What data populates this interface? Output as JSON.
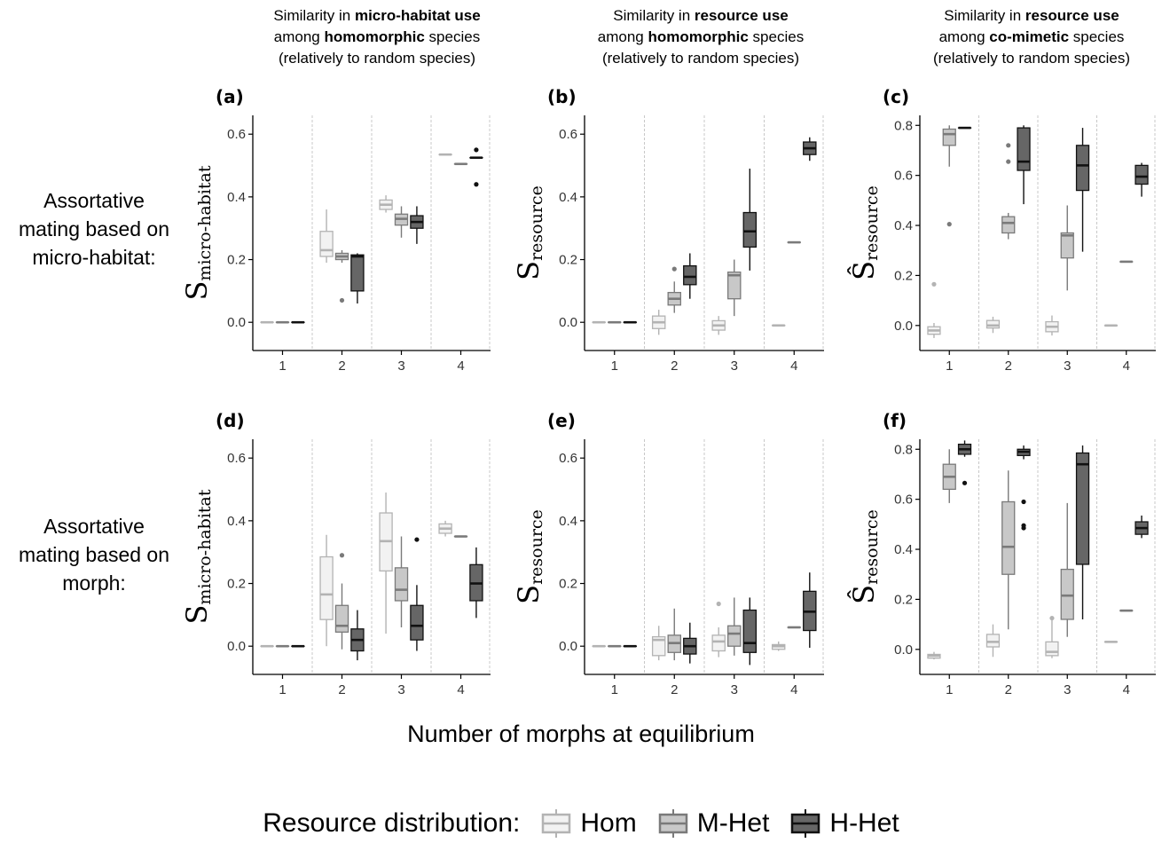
{
  "column_titles": [
    {
      "pre": "Similarity in ",
      "bold1": "micro-habitat use",
      "mid": "among ",
      "bold2": "homomorphic",
      "post": " species",
      "line3": "(relatively to random species)"
    },
    {
      "pre": "Similarity in ",
      "bold1": "resource use",
      "mid": "among ",
      "bold2": "homomorphic",
      "post": " species",
      "line3": "(relatively to random species)"
    },
    {
      "pre": "Similarity in ",
      "bold1": "resource use",
      "mid": "among ",
      "bold2": "co-mimetic",
      "post": " species",
      "line3": "(relatively to random species)"
    }
  ],
  "row_labels": [
    [
      "Assortative",
      "mating based on",
      "micro-habitat:"
    ],
    [
      "Assortative",
      "mating based on",
      "morph:"
    ]
  ],
  "xlabel": "Number of morphs at equilibrium",
  "legend": {
    "title": "Resource distribution:",
    "items": [
      {
        "label": "Hom",
        "fill": "#f2f2f2",
        "stroke": "#b3b3b3"
      },
      {
        "label": "M-Het",
        "fill": "#c8c8c8",
        "stroke": "#7a7a7a"
      },
      {
        "label": "H-Het",
        "fill": "#666666",
        "stroke": "#111111"
      }
    ]
  },
  "chart_data": [
    {
      "panel": "(a)",
      "type": "boxplot",
      "ylabel": "S micro-habitat",
      "ylim": [
        -0.09,
        0.66
      ],
      "yticks": [
        0.0,
        0.2,
        0.4,
        0.6
      ],
      "categories": [
        "1",
        "2",
        "3",
        "4"
      ],
      "series": [
        {
          "name": "Hom",
          "boxes": [
            [
              0,
              0,
              0,
              0,
              0
            ],
            [
              0.19,
              0.21,
              0.23,
              0.29,
              0.36
            ],
            [
              0.35,
              0.36,
              0.375,
              0.39,
              0.405
            ],
            [
              0.535,
              0.535,
              0.535,
              0.535,
              0.535
            ]
          ],
          "outliers": [
            [],
            [],
            [],
            []
          ]
        },
        {
          "name": "M-Het",
          "boxes": [
            [
              0,
              0,
              0,
              0,
              0
            ],
            [
              0.19,
              0.2,
              0.21,
              0.22,
              0.23
            ],
            [
              0.27,
              0.31,
              0.33,
              0.345,
              0.37
            ],
            [
              0.505,
              0.505,
              0.505,
              0.505,
              0.505
            ]
          ],
          "outliers": [
            [],
            [
              0.07
            ],
            [],
            []
          ]
        },
        {
          "name": "H-Het",
          "boxes": [
            [
              0,
              0,
              0,
              0,
              0
            ],
            [
              0.06,
              0.1,
              0.21,
              0.215,
              0.22
            ],
            [
              0.25,
              0.3,
              0.32,
              0.34,
              0.37
            ],
            [
              0.525,
              0.525,
              0.525,
              0.525,
              0.525
            ]
          ],
          "outliers": [
            [],
            [],
            [],
            [
              0.44,
              0.55
            ]
          ]
        }
      ]
    },
    {
      "panel": "(b)",
      "type": "boxplot",
      "ylabel": "S resource",
      "ylim": [
        -0.09,
        0.66
      ],
      "yticks": [
        0.0,
        0.2,
        0.4,
        0.6
      ],
      "categories": [
        "1",
        "2",
        "3",
        "4"
      ],
      "series": [
        {
          "name": "Hom",
          "boxes": [
            [
              0,
              0,
              0,
              0,
              0
            ],
            [
              -0.04,
              -0.02,
              0,
              0.02,
              0.04
            ],
            [
              -0.04,
              -0.025,
              -0.01,
              0.005,
              0.02
            ],
            [
              -0.01,
              -0.01,
              -0.01,
              -0.01,
              -0.01
            ]
          ],
          "outliers": [
            [],
            [],
            [],
            []
          ]
        },
        {
          "name": "M-Het",
          "boxes": [
            [
              0,
              0,
              0,
              0,
              0
            ],
            [
              0.03,
              0.055,
              0.075,
              0.095,
              0.13
            ],
            [
              0.02,
              0.075,
              0.15,
              0.16,
              0.2
            ],
            [
              0.255,
              0.255,
              0.255,
              0.255,
              0.255
            ]
          ],
          "outliers": [
            [],
            [
              0.17
            ],
            [],
            []
          ]
        },
        {
          "name": "H-Het",
          "boxes": [
            [
              0,
              0,
              0,
              0,
              0
            ],
            [
              0.075,
              0.12,
              0.145,
              0.18,
              0.22
            ],
            [
              0.165,
              0.24,
              0.29,
              0.35,
              0.49
            ],
            [
              0.515,
              0.535,
              0.555,
              0.575,
              0.59
            ]
          ],
          "outliers": [
            [],
            [],
            [],
            []
          ]
        }
      ]
    },
    {
      "panel": "(c)",
      "type": "boxplot",
      "ylabel": "Ŝ resource",
      "ylim": [
        -0.1,
        0.84
      ],
      "yticks": [
        0.0,
        0.2,
        0.4,
        0.6,
        0.8
      ],
      "categories": [
        "1",
        "2",
        "3",
        "4"
      ],
      "series": [
        {
          "name": "Hom",
          "boxes": [
            [
              -0.05,
              -0.035,
              -0.02,
              -0.005,
              0.01
            ],
            [
              -0.03,
              -0.01,
              0,
              0.02,
              0.035
            ],
            [
              -0.04,
              -0.025,
              -0.005,
              0.015,
              0.04
            ],
            [
              0,
              0,
              0,
              0,
              0
            ]
          ],
          "outliers": [
            [
              0.165
            ],
            [],
            [],
            []
          ]
        },
        {
          "name": "M-Het",
          "boxes": [
            [
              0.635,
              0.72,
              0.765,
              0.785,
              0.8
            ],
            [
              0.345,
              0.37,
              0.41,
              0.435,
              0.45
            ],
            [
              0.14,
              0.27,
              0.36,
              0.37,
              0.48
            ],
            [
              0.255,
              0.255,
              0.255,
              0.255,
              0.255
            ]
          ],
          "outliers": [
            [
              0.405
            ],
            [
              0.655,
              0.72
            ],
            [],
            []
          ]
        },
        {
          "name": "H-Het",
          "boxes": [
            [
              0.79,
              0.79,
              0.79,
              0.79,
              0.79
            ],
            [
              0.485,
              0.62,
              0.655,
              0.79,
              0.8
            ],
            [
              0.295,
              0.54,
              0.64,
              0.72,
              0.79
            ],
            [
              0.515,
              0.565,
              0.595,
              0.64,
              0.65
            ]
          ],
          "outliers": [
            [],
            [],
            [],
            []
          ]
        }
      ]
    },
    {
      "panel": "(d)",
      "type": "boxplot",
      "ylabel": "S micro-habitat",
      "ylim": [
        -0.09,
        0.66
      ],
      "yticks": [
        0.0,
        0.2,
        0.4,
        0.6
      ],
      "categories": [
        "1",
        "2",
        "3",
        "4"
      ],
      "series": [
        {
          "name": "Hom",
          "boxes": [
            [
              0,
              0,
              0,
              0,
              0
            ],
            [
              0,
              0.085,
              0.165,
              0.285,
              0.355
            ],
            [
              0.04,
              0.24,
              0.335,
              0.425,
              0.49
            ],
            [
              0.35,
              0.36,
              0.375,
              0.39,
              0.4
            ]
          ],
          "outliers": [
            [],
            [],
            [],
            []
          ]
        },
        {
          "name": "M-Het",
          "boxes": [
            [
              0,
              0,
              0,
              0,
              0
            ],
            [
              -0.01,
              0.045,
              0.065,
              0.13,
              0.2
            ],
            [
              0.06,
              0.145,
              0.18,
              0.25,
              0.35
            ],
            [
              0.35,
              0.35,
              0.35,
              0.35,
              0.35
            ]
          ],
          "outliers": [
            [],
            [
              0.29
            ],
            [],
            []
          ]
        },
        {
          "name": "H-Het",
          "boxes": [
            [
              0,
              0,
              0,
              0,
              0
            ],
            [
              -0.045,
              -0.015,
              0.02,
              0.055,
              0.115
            ],
            [
              -0.015,
              0.02,
              0.065,
              0.13,
              0.195
            ],
            [
              0.09,
              0.145,
              0.2,
              0.26,
              0.315
            ]
          ],
          "outliers": [
            [],
            [],
            [
              0.34
            ],
            []
          ]
        }
      ]
    },
    {
      "panel": "(e)",
      "type": "boxplot",
      "ylabel": "S resource",
      "ylim": [
        -0.09,
        0.66
      ],
      "yticks": [
        0.0,
        0.2,
        0.4,
        0.6
      ],
      "categories": [
        "1",
        "2",
        "3",
        "4"
      ],
      "series": [
        {
          "name": "Hom",
          "boxes": [
            [
              0,
              0,
              0,
              0,
              0
            ],
            [
              -0.045,
              -0.03,
              0.02,
              0.03,
              0.065
            ],
            [
              -0.035,
              -0.015,
              0.015,
              0.035,
              0.06
            ],
            [
              -0.015,
              -0.01,
              0,
              0.005,
              0.015
            ]
          ],
          "outliers": [
            [],
            [],
            [
              0.135
            ],
            []
          ]
        },
        {
          "name": "M-Het",
          "boxes": [
            [
              0,
              0,
              0,
              0,
              0
            ],
            [
              -0.045,
              -0.02,
              0.01,
              0.035,
              0.12
            ],
            [
              -0.03,
              0,
              0.04,
              0.065,
              0.155
            ],
            [
              0.06,
              0.06,
              0.06,
              0.06,
              0.06
            ]
          ],
          "outliers": [
            [],
            [],
            [],
            []
          ]
        },
        {
          "name": "H-Het",
          "boxes": [
            [
              0,
              0,
              0,
              0,
              0
            ],
            [
              -0.055,
              -0.025,
              0,
              0.025,
              0.075
            ],
            [
              -0.06,
              -0.02,
              0.01,
              0.115,
              0.155
            ],
            [
              -0.005,
              0.05,
              0.11,
              0.175,
              0.235
            ]
          ],
          "outliers": [
            [],
            [],
            [],
            []
          ]
        }
      ]
    },
    {
      "panel": "(f)",
      "type": "boxplot",
      "ylabel": "Ŝ resource",
      "ylim": [
        -0.1,
        0.84
      ],
      "yticks": [
        0.0,
        0.2,
        0.4,
        0.6,
        0.8
      ],
      "categories": [
        "1",
        "2",
        "3",
        "4"
      ],
      "series": [
        {
          "name": "Hom",
          "boxes": [
            [
              -0.04,
              -0.035,
              -0.025,
              -0.02,
              -0.01
            ],
            [
              -0.03,
              0.01,
              0.03,
              0.06,
              0.1
            ],
            [
              -0.035,
              -0.025,
              -0.01,
              0.03,
              0.13
            ],
            [
              0.03,
              0.03,
              0.03,
              0.03,
              0.03
            ]
          ],
          "outliers": [
            [],
            [],
            [
              0.125
            ],
            []
          ]
        },
        {
          "name": "M-Het",
          "boxes": [
            [
              0.585,
              0.64,
              0.69,
              0.74,
              0.8
            ],
            [
              0.08,
              0.3,
              0.41,
              0.59,
              0.715
            ],
            [
              0.05,
              0.12,
              0.215,
              0.32,
              0.585
            ],
            [
              0.155,
              0.155,
              0.155,
              0.155,
              0.155
            ]
          ],
          "outliers": [
            [],
            [],
            [],
            []
          ]
        },
        {
          "name": "H-Het",
          "boxes": [
            [
              0.77,
              0.78,
              0.8,
              0.82,
              0.835
            ],
            [
              0.76,
              0.775,
              0.79,
              0.8,
              0.815
            ],
            [
              0.12,
              0.34,
              0.74,
              0.785,
              0.815
            ],
            [
              0.445,
              0.46,
              0.485,
              0.51,
              0.535
            ]
          ],
          "outliers": [
            [
              0.665
            ],
            [
              0.485,
              0.495,
              0.59
            ],
            [],
            []
          ]
        }
      ]
    }
  ]
}
